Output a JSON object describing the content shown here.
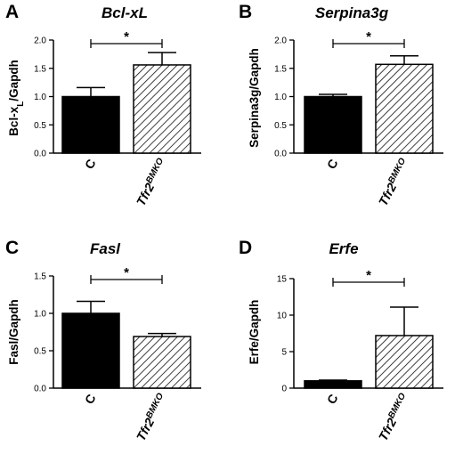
{
  "chart_data": [
    {
      "panel_letter": "A",
      "type": "bar",
      "title": "Bcl-xL",
      "ylabel": {
        "pre": "Bcl-x",
        "sub": "L",
        "post": "/Gapdh"
      },
      "ylim": [
        0,
        2.0
      ],
      "yticks": [
        "0.0",
        "0.5",
        "1.0",
        "1.5",
        "2.0"
      ],
      "categories": [
        {
          "main": "C",
          "sup": ""
        },
        {
          "main": "Tfr2",
          "sup": "BMKO"
        }
      ],
      "values": [
        1.0,
        1.56
      ],
      "errors": [
        0.16,
        0.22
      ],
      "fills": [
        "solid",
        "hatched"
      ],
      "significance": "*"
    },
    {
      "panel_letter": "B",
      "type": "bar",
      "title": "Serpina3g",
      "ylabel": {
        "pre": "Serpina3g/Gapdh",
        "sub": "",
        "post": ""
      },
      "ylim": [
        0,
        2.0
      ],
      "yticks": [
        "0.0",
        "0.5",
        "1.0",
        "1.5",
        "2.0"
      ],
      "categories": [
        {
          "main": "C",
          "sup": ""
        },
        {
          "main": "Tfr2",
          "sup": "BMKO"
        }
      ],
      "values": [
        1.0,
        1.57
      ],
      "errors": [
        0.04,
        0.15
      ],
      "fills": [
        "solid",
        "hatched"
      ],
      "significance": "*"
    },
    {
      "panel_letter": "C",
      "type": "bar",
      "title": "Fasl",
      "ylabel": {
        "pre": "Fasl/Gapdh",
        "sub": "",
        "post": ""
      },
      "ylim": [
        0,
        1.5
      ],
      "yticks": [
        "0.0",
        "0.5",
        "1.0",
        "1.5"
      ],
      "categories": [
        {
          "main": "C",
          "sup": ""
        },
        {
          "main": "Tfr2",
          "sup": "BMKO"
        }
      ],
      "values": [
        1.0,
        0.69
      ],
      "errors": [
        0.16,
        0.04
      ],
      "fills": [
        "solid",
        "hatched"
      ],
      "significance": "*"
    },
    {
      "panel_letter": "D",
      "type": "bar",
      "title": "Erfe",
      "ylabel": {
        "pre": "Erfe/Gapdh",
        "sub": "",
        "post": ""
      },
      "ylim": [
        0,
        15
      ],
      "yticks": [
        "0",
        "5",
        "10",
        "15"
      ],
      "categories": [
        {
          "main": "C",
          "sup": ""
        },
        {
          "main": "Tfr2",
          "sup": "BMKO"
        }
      ],
      "values": [
        1.0,
        7.2
      ],
      "errors": [
        0.1,
        3.9
      ],
      "fills": [
        "solid",
        "hatched"
      ],
      "significance": "*"
    }
  ]
}
